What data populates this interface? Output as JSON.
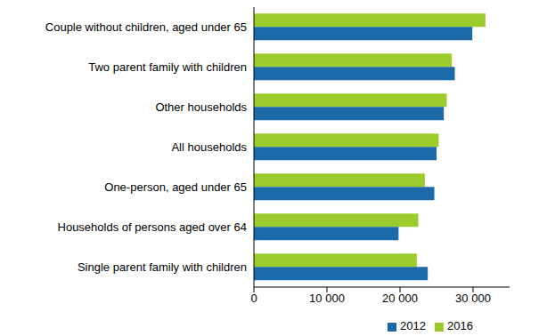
{
  "chart_data": {
    "type": "bar",
    "orientation": "horizontal",
    "categories": [
      "Couple without children, aged under 65",
      "Two parent family with children",
      "Other households",
      "All households",
      "One-person, aged under 65",
      "Households of persons aged over 64",
      "Single parent family with children"
    ],
    "series": [
      {
        "name": "2016",
        "color": "#9ccc2c",
        "values": [
          31700,
          27100,
          26400,
          25300,
          23400,
          22500,
          22300
        ]
      },
      {
        "name": "2012",
        "color": "#1c6aa8",
        "values": [
          29900,
          27500,
          26000,
          25000,
          24700,
          19800,
          23800
        ]
      }
    ],
    "xlim": [
      0,
      35000
    ],
    "xticks": [
      0,
      {
        "value": 10000,
        "label": "10 000"
      },
      {
        "value": 20000,
        "label": "20 000"
      },
      {
        "value": 30000,
        "label": "30 000"
      }
    ],
    "grid": false,
    "legend": "bottom"
  }
}
